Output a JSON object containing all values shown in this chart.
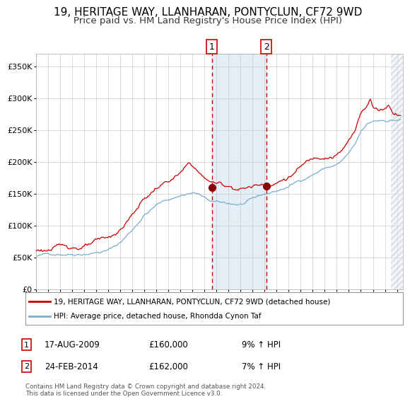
{
  "title": "19, HERITAGE WAY, LLANHARAN, PONTYCLUN, CF72 9WD",
  "subtitle": "Price paid vs. HM Land Registry's House Price Index (HPI)",
  "ylim": [
    0,
    370000
  ],
  "yticks": [
    0,
    50000,
    100000,
    150000,
    200000,
    250000,
    300000,
    350000
  ],
  "ytick_labels": [
    "£0",
    "£50K",
    "£100K",
    "£150K",
    "£200K",
    "£250K",
    "£300K",
    "£350K"
  ],
  "line1_color": "#cc0000",
  "line2_color": "#7aadcc",
  "marker_color": "#880000",
  "vline_color": "#cc0000",
  "shade_color": "#cce0f0",
  "sale1_date": 2009.625,
  "sale1_price": 160000,
  "sale2_date": 2014.14,
  "sale2_price": 162000,
  "legend_line1": "19, HERITAGE WAY, LLANHARAN, PONTYCLUN, CF72 9WD (detached house)",
  "legend_line2": "HPI: Average price, detached house, Rhondda Cynon Taf",
  "annot1_date": "17-AUG-2009",
  "annot1_price": "£160,000",
  "annot1_hpi": "9% ↑ HPI",
  "annot2_date": "24-FEB-2014",
  "annot2_price": "£162,000",
  "annot2_hpi": "7% ↑ HPI",
  "footer": "Contains HM Land Registry data © Crown copyright and database right 2024.\nThis data is licensed under the Open Government Licence v3.0.",
  "background_color": "#ffffff",
  "grid_color": "#cccccc",
  "title_fontsize": 11,
  "subtitle_fontsize": 9.5
}
